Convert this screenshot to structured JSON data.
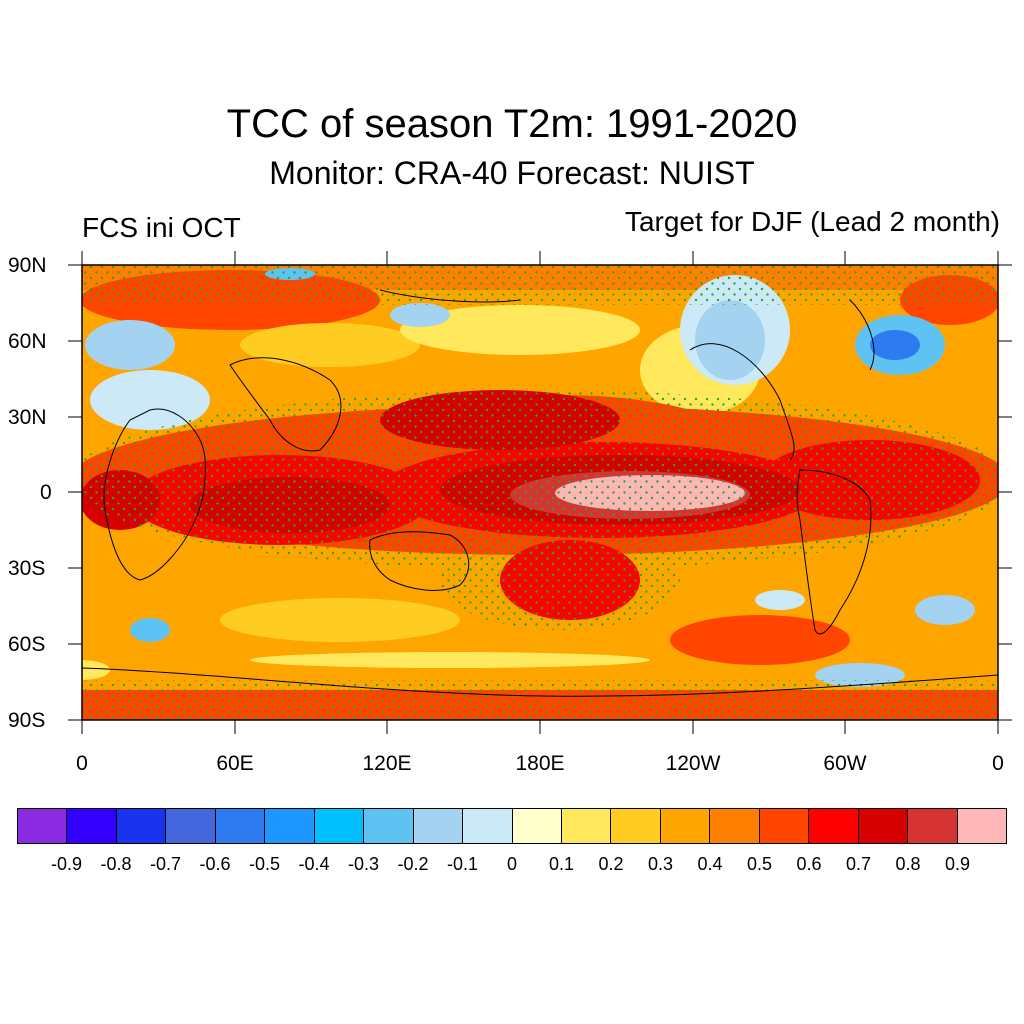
{
  "title": "TCC of season T2m: 1991-2020",
  "subtitle": "Monitor: CRA-40   Forecast: NUIST",
  "left_label": "FCS ini OCT",
  "right_label": "Target for DJF (Lead 2 month)",
  "map": {
    "projection": "cylindrical-equidistant",
    "lat_ticks": [
      "90N",
      "60N",
      "30N",
      "0",
      "30S",
      "60S",
      "90S"
    ],
    "lon_ticks": [
      "0",
      "60E",
      "120E",
      "180E",
      "120W",
      "60W",
      "0"
    ],
    "stipple_color": "#22aa22",
    "description_field": "temporal correlation coefficient"
  },
  "colorbar": {
    "colors": [
      "#8a2be2",
      "#3300ff",
      "#1a33ee",
      "#4466dd",
      "#2e7bef",
      "#1e96ff",
      "#00bfff",
      "#5ec3f2",
      "#a3d3f0",
      "#cce9f7",
      "#ffffcc",
      "#ffe85c",
      "#ffcc22",
      "#ffa500",
      "#ff7f00",
      "#ff4500",
      "#ff0000",
      "#d60000",
      "#d63333",
      "#ffb6b6"
    ],
    "labels": [
      "-0.9",
      "-0.8",
      "-0.7",
      "-0.6",
      "-0.5",
      "-0.4",
      "-0.3",
      "-0.2",
      "-0.1",
      "0",
      "0.1",
      "0.2",
      "0.3",
      "0.4",
      "0.5",
      "0.6",
      "0.7",
      "0.8",
      "0.9"
    ]
  }
}
